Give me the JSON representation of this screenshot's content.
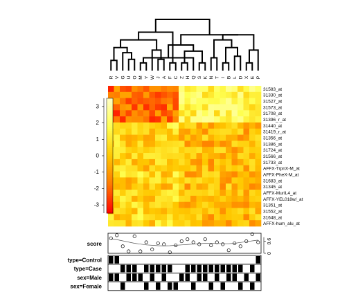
{
  "chart_data": {
    "type": "heatmap",
    "columns": [
      "R",
      "V",
      "G",
      "U",
      "O",
      "M",
      "Y",
      "W",
      "J",
      "A",
      "F",
      "C",
      "Z",
      "H",
      "Q",
      "S",
      "K",
      "N",
      "T",
      "I",
      "B",
      "L",
      "D",
      "X",
      "E",
      "P"
    ],
    "rows": [
      "31583_at",
      "31330_at",
      "31527_at",
      "31573_at",
      "31708_at",
      "31396_r_at",
      "31440_at",
      "31419_r_at",
      "31356_at",
      "31386_at",
      "31724_at",
      "31566_at",
      "31733_at",
      "AFFX-TrpnX-M_at",
      "AFFX-PheX-M_at",
      "31683_at",
      "31345_at",
      "AFFX-MurIL4_at",
      "AFFX-YEL018w/_at",
      "31351_at",
      "31552_at",
      "31648_at",
      "AFFX-hum_alu_at"
    ],
    "color_key": {
      "ticks": [
        3,
        2,
        1,
        0,
        -1,
        -2,
        -3
      ],
      "range": [
        -3.5,
        3.5
      ],
      "low_color": "#ff0000",
      "mid_color": "#ffa500",
      "high_color": "#ffffc0"
    },
    "score": {
      "label": "score",
      "axis_ticks": [
        "0",
        "0.6"
      ],
      "points": [
        0.75,
        0.9,
        0.35,
        0.1,
        0.85,
        0.1,
        0.55,
        0.2,
        0.5,
        0.45,
        0.05,
        0.4,
        0.6,
        0.7,
        0.55,
        0.45,
        0.7,
        0.4,
        0.55,
        0.45,
        0.15,
        0.5,
        0.35,
        0.6,
        0.95,
        0.55
      ],
      "smooth": [
        0.72,
        0.68,
        0.62,
        0.56,
        0.5,
        0.46,
        0.42,
        0.4,
        0.38,
        0.37,
        0.38,
        0.4,
        0.42,
        0.44,
        0.46,
        0.48,
        0.5,
        0.5,
        0.49,
        0.48,
        0.48,
        0.5,
        0.54,
        0.58,
        0.62,
        0.66
      ]
    },
    "tracks": [
      {
        "label": "type=Control",
        "values": [
          1,
          1,
          0,
          0,
          0,
          0,
          0,
          0,
          0,
          0,
          0,
          0,
          0,
          0,
          0,
          0,
          0,
          0,
          0,
          0,
          0,
          0,
          0,
          0,
          0,
          1
        ]
      },
      {
        "label": "type=Case",
        "values": [
          0,
          0,
          1,
          1,
          1,
          0,
          1,
          1,
          1,
          1,
          1,
          0,
          0,
          1,
          1,
          1,
          1,
          1,
          1,
          1,
          1,
          1,
          1,
          0,
          1,
          0
        ]
      },
      {
        "label": "sex=Male",
        "values": [
          1,
          1,
          0,
          1,
          1,
          1,
          0,
          1,
          0,
          1,
          0,
          0,
          1,
          1,
          0,
          1,
          1,
          0,
          1,
          0,
          1,
          1,
          0,
          1,
          0,
          1
        ]
      },
      {
        "label": "sex=Female",
        "values": [
          0,
          0,
          1,
          0,
          0,
          0,
          1,
          0,
          1,
          0,
          1,
          1,
          0,
          0,
          1,
          0,
          0,
          1,
          0,
          1,
          0,
          0,
          1,
          0,
          1,
          0
        ]
      }
    ],
    "dendrogram": {
      "merges": [
        [
          -6,
          -7
        ],
        [
          -11,
          -12
        ],
        [
          -13,
          -14
        ],
        [
          -16,
          -17
        ],
        [
          -20,
          -21
        ],
        [
          -24,
          -25
        ],
        [
          -1,
          -2
        ],
        [
          -4,
          -5
        ],
        [
          -9,
          -10
        ],
        [
          -15,
          1
        ],
        [
          -18,
          -19
        ],
        [
          -22,
          -23
        ],
        [
          -3,
          8
        ],
        [
          3,
          4
        ],
        [
          -8,
          9
        ],
        [
          7,
          13
        ],
        [
          6,
          -26
        ],
        [
          5,
          12
        ],
        [
          14,
          10
        ],
        [
          11,
          18
        ],
        [
          16,
          15
        ],
        [
          20,
          17
        ],
        [
          19,
          22
        ],
        [
          21,
          2
        ],
        [
          24,
          23
        ]
      ],
      "heights": [
        0.15,
        0.15,
        0.15,
        0.15,
        0.15,
        0.15,
        0.2,
        0.22,
        0.22,
        0.25,
        0.25,
        0.28,
        0.35,
        0.38,
        0.4,
        0.45,
        0.4,
        0.45,
        0.5,
        0.6,
        0.6,
        0.7,
        0.7,
        0.75,
        1.0
      ]
    }
  }
}
